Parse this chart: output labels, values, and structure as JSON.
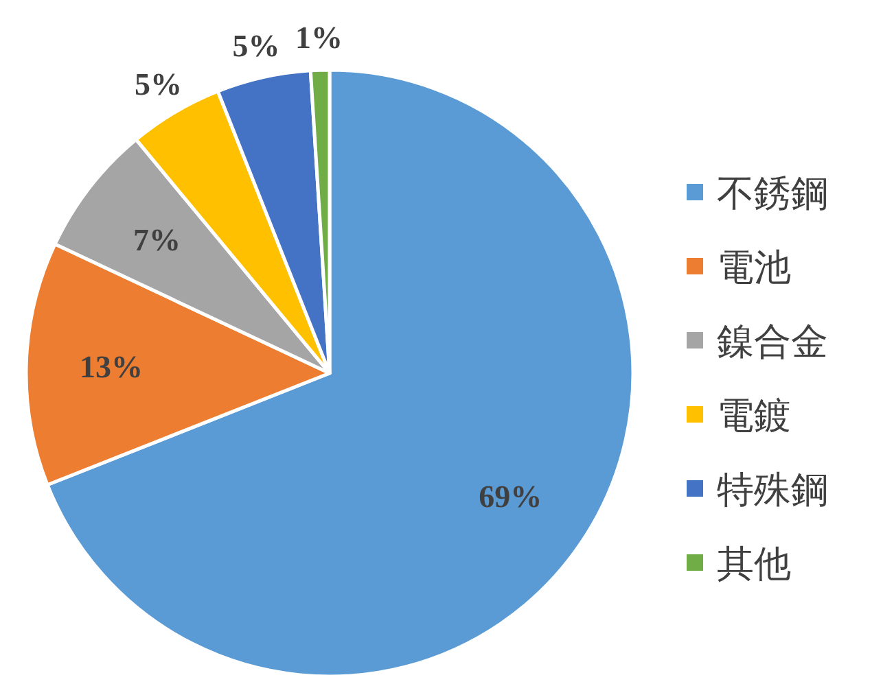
{
  "chart_data": {
    "type": "pie",
    "categories": [
      "不銹鋼",
      "電池",
      "鎳合金",
      "電鍍",
      "特殊鋼",
      "其他"
    ],
    "values": [
      69,
      13,
      7,
      5,
      5,
      1
    ],
    "colors": [
      "#5b9bd5",
      "#ed7d31",
      "#a5a5a5",
      "#ffc000",
      "#4472c4",
      "#70ad47"
    ],
    "value_labels": [
      "69%",
      "13%",
      "7%",
      "5%",
      "5%",
      "1%"
    ],
    "legend": "right"
  }
}
